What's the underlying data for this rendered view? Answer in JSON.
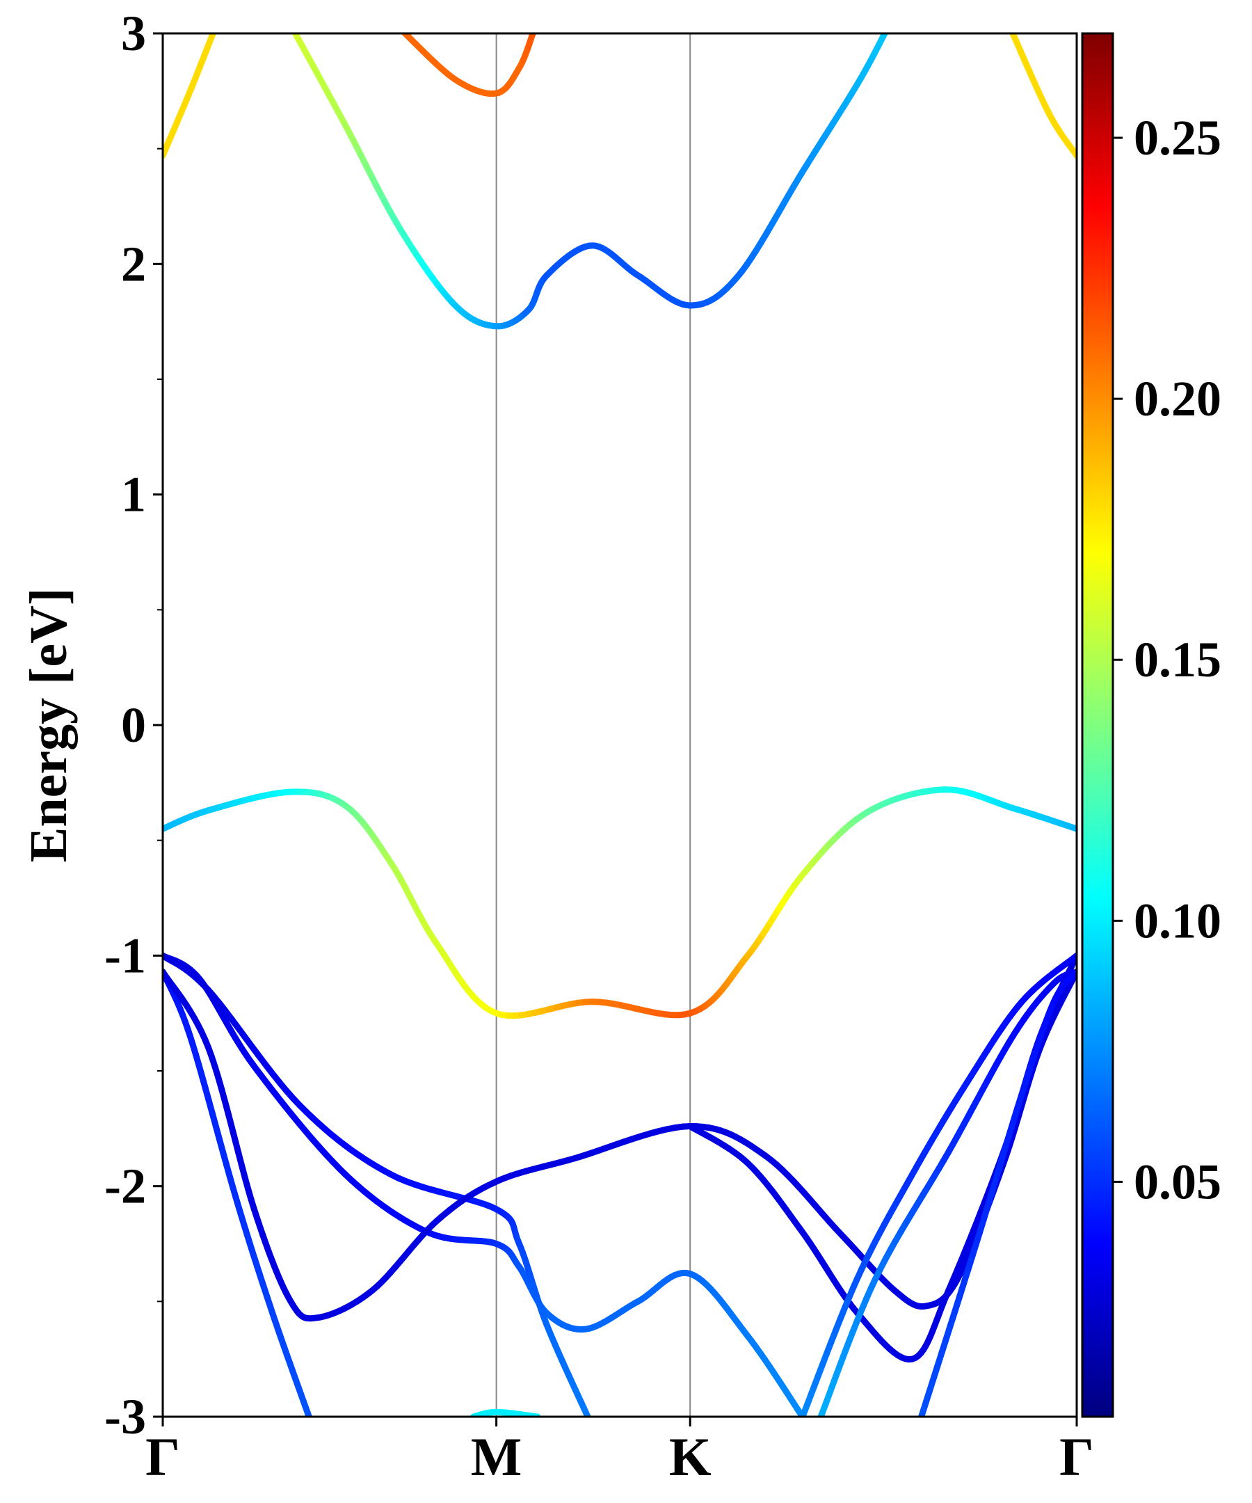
{
  "chart_data": {
    "type": "line",
    "subtype": "band-structure-colored",
    "title": "",
    "ylabel": "Energy [eV]",
    "xlabel": "",
    "ylim": [
      -3,
      3
    ],
    "yticks": [
      -3,
      -2,
      -1,
      0,
      1,
      2,
      3
    ],
    "ytick_labels": [
      "-3",
      "-2",
      "-1",
      "0",
      "1",
      "2",
      "3"
    ],
    "xlim": [
      0,
      1.0
    ],
    "kpoints": [
      {
        "label": "Γ",
        "x": 0.0
      },
      {
        "label": "M",
        "x": 0.365
      },
      {
        "label": "K",
        "x": 0.577
      },
      {
        "label": "Γ",
        "x": 1.0
      }
    ],
    "colorbar": {
      "cmap": "jet",
      "range": [
        0.005,
        0.27
      ],
      "ticks": [
        0.05,
        0.1,
        0.15,
        0.2,
        0.25
      ],
      "tick_labels": [
        "0.05",
        "0.10",
        "0.15",
        "0.20",
        "0.25"
      ]
    },
    "grid": false,
    "legend": "none",
    "series": [
      {
        "points": [
          [
            0.0,
            -0.45,
            0.085
          ],
          [
            0.05,
            -0.37,
            0.09
          ],
          [
            0.14,
            -0.29,
            0.105
          ],
          [
            0.2,
            -0.35,
            0.13
          ],
          [
            0.25,
            -0.6,
            0.15
          ],
          [
            0.3,
            -0.95,
            0.16
          ],
          [
            0.365,
            -1.25,
            0.17
          ],
          [
            0.47,
            -1.2,
            0.205
          ],
          [
            0.577,
            -1.25,
            0.215
          ],
          [
            0.64,
            -1.0,
            0.19
          ],
          [
            0.7,
            -0.65,
            0.16
          ],
          [
            0.77,
            -0.38,
            0.13
          ],
          [
            0.855,
            -0.28,
            0.11
          ],
          [
            0.93,
            -0.36,
            0.095
          ],
          [
            1.0,
            -0.45,
            0.085
          ]
        ]
      },
      {
        "points": [
          [
            0.0,
            -1.0,
            0.03
          ],
          [
            0.04,
            -1.1,
            0.03
          ],
          [
            0.1,
            -1.48,
            0.035
          ],
          [
            0.2,
            -1.95,
            0.035
          ],
          [
            0.29,
            -2.2,
            0.04
          ],
          [
            0.365,
            -2.25,
            0.05
          ],
          [
            0.39,
            -2.35,
            0.06
          ],
          [
            0.42,
            -2.55,
            0.065
          ],
          [
            0.463,
            -2.62,
            0.065
          ],
          [
            0.52,
            -2.5,
            0.065
          ],
          [
            0.577,
            -2.38,
            0.065
          ],
          [
            0.64,
            -2.65,
            0.07
          ],
          [
            0.7,
            -3.0,
            0.075
          ]
        ]
      },
      {
        "points": [
          [
            0.0,
            -1.0,
            0.03
          ],
          [
            0.05,
            -1.15,
            0.03
          ],
          [
            0.15,
            -1.65,
            0.035
          ],
          [
            0.25,
            -1.95,
            0.04
          ],
          [
            0.365,
            -2.1,
            0.045
          ],
          [
            0.39,
            -2.25,
            0.055
          ],
          [
            0.42,
            -2.6,
            0.065
          ],
          [
            0.465,
            -3.0,
            0.07
          ]
        ]
      },
      {
        "points": [
          [
            0.0,
            -1.07,
            0.04
          ],
          [
            0.03,
            -1.35,
            0.045
          ],
          [
            0.08,
            -2.05,
            0.05
          ],
          [
            0.12,
            -2.55,
            0.055
          ],
          [
            0.16,
            -3.0,
            0.06
          ]
        ]
      },
      {
        "points": [
          [
            0.0,
            -1.07,
            0.03
          ],
          [
            0.05,
            -1.4,
            0.03
          ],
          [
            0.1,
            -2.1,
            0.03
          ],
          [
            0.14,
            -2.5,
            0.03
          ],
          [
            0.17,
            -2.57,
            0.03
          ],
          [
            0.23,
            -2.45,
            0.03
          ],
          [
            0.3,
            -2.15,
            0.03
          ],
          [
            0.365,
            -1.98,
            0.03
          ],
          [
            0.45,
            -1.88,
            0.03
          ],
          [
            0.577,
            -1.74,
            0.03
          ],
          [
            0.66,
            -1.87,
            0.03
          ],
          [
            0.74,
            -2.2,
            0.03
          ],
          [
            0.8,
            -2.45,
            0.03
          ],
          [
            0.835,
            -2.52,
            0.03
          ],
          [
            0.87,
            -2.4,
            0.03
          ],
          [
            0.92,
            -1.9,
            0.03
          ],
          [
            0.96,
            -1.4,
            0.03
          ],
          [
            1.0,
            -1.07,
            0.03
          ]
        ]
      },
      {
        "points": [
          [
            0.577,
            -1.74,
            0.03
          ],
          [
            0.64,
            -1.9,
            0.03
          ],
          [
            0.7,
            -2.2,
            0.03
          ],
          [
            0.76,
            -2.55,
            0.03
          ],
          [
            0.82,
            -2.75,
            0.03
          ],
          [
            0.86,
            -2.45,
            0.03
          ],
          [
            0.92,
            -1.85,
            0.03
          ],
          [
            0.96,
            -1.35,
            0.03
          ],
          [
            1.0,
            -1.0,
            0.03
          ]
        ]
      },
      {
        "points": [
          [
            0.7,
            -3.0,
            0.075
          ],
          [
            0.76,
            -2.4,
            0.06
          ],
          [
            0.82,
            -1.95,
            0.05
          ],
          [
            0.88,
            -1.55,
            0.045
          ],
          [
            0.94,
            -1.2,
            0.04
          ],
          [
            1.0,
            -1.0,
            0.035
          ]
        ]
      },
      {
        "points": [
          [
            0.72,
            -3.0,
            0.085
          ],
          [
            0.78,
            -2.4,
            0.07
          ],
          [
            0.86,
            -1.85,
            0.05
          ],
          [
            0.93,
            -1.35,
            0.04
          ],
          [
            0.975,
            -1.12,
            0.035
          ],
          [
            1.0,
            -1.07,
            0.035
          ]
        ]
      },
      {
        "points": [
          [
            0.83,
            -3.0,
            0.06
          ],
          [
            0.89,
            -2.25,
            0.05
          ],
          [
            0.94,
            -1.6,
            0.045
          ],
          [
            0.975,
            -1.2,
            0.04
          ],
          [
            1.0,
            -1.07,
            0.04
          ]
        ]
      },
      {
        "points": [
          [
            0.0,
            2.47,
            0.18
          ],
          [
            0.03,
            2.75,
            0.18
          ],
          [
            0.055,
            3.0,
            0.18
          ]
        ]
      },
      {
        "points": [
          [
            0.145,
            3.0,
            0.16
          ],
          [
            0.2,
            2.6,
            0.15
          ],
          [
            0.26,
            2.15,
            0.12
          ],
          [
            0.32,
            1.82,
            0.09
          ],
          [
            0.365,
            1.73,
            0.08
          ],
          [
            0.4,
            1.8,
            0.065
          ],
          [
            0.42,
            1.95,
            0.06
          ],
          [
            0.47,
            2.08,
            0.06
          ],
          [
            0.52,
            1.95,
            0.06
          ],
          [
            0.577,
            1.82,
            0.06
          ],
          [
            0.63,
            1.95,
            0.065
          ],
          [
            0.7,
            2.4,
            0.075
          ],
          [
            0.76,
            2.78,
            0.085
          ],
          [
            0.79,
            3.0,
            0.09
          ]
        ]
      },
      {
        "points": [
          [
            0.265,
            3.0,
            0.21
          ],
          [
            0.32,
            2.8,
            0.21
          ],
          [
            0.365,
            2.74,
            0.21
          ],
          [
            0.39,
            2.85,
            0.21
          ],
          [
            0.405,
            3.0,
            0.215
          ]
        ]
      },
      {
        "points": [
          [
            0.93,
            3.0,
            0.18
          ],
          [
            0.97,
            2.65,
            0.18
          ],
          [
            1.0,
            2.47,
            0.18
          ]
        ]
      },
      {
        "points": [
          [
            0.34,
            -3.0,
            0.1
          ],
          [
            0.365,
            -2.98,
            0.1
          ],
          [
            0.41,
            -3.0,
            0.1
          ]
        ]
      }
    ]
  }
}
